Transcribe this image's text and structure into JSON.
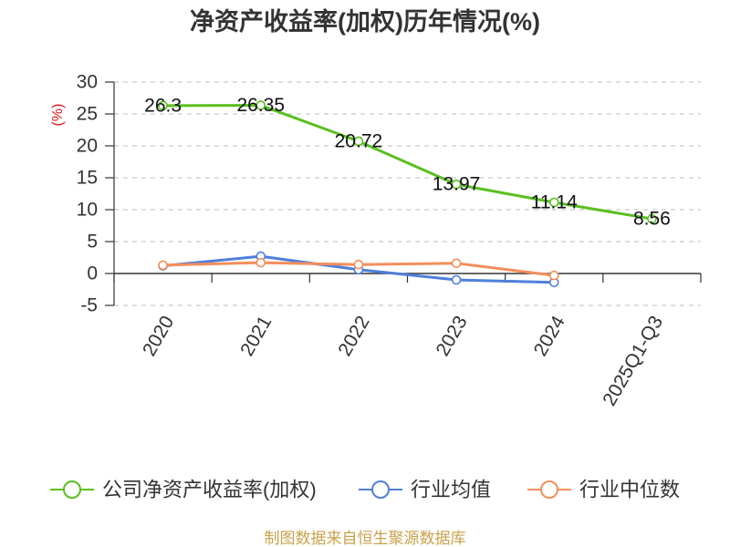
{
  "chart_data": {
    "type": "line",
    "title": "净资产收益率(加权)历年情况(%)",
    "ylabel": "(%)",
    "categories": [
      "2020",
      "2021",
      "2022",
      "2023",
      "2024",
      "2025Q1-Q3"
    ],
    "ylim": [
      -5,
      30
    ],
    "yticks": [
      30,
      25,
      20,
      15,
      10,
      5,
      0,
      -5
    ],
    "grid": true,
    "legend_position": "bottom",
    "series": [
      {
        "name": "公司净资产收益率(加权)",
        "color": "#5bbf20",
        "show_labels": true,
        "values": [
          26.3,
          26.35,
          20.72,
          13.97,
          11.14,
          8.56
        ]
      },
      {
        "name": "行业均值",
        "color": "#4f7fdb",
        "show_labels": false,
        "values": [
          1.2,
          2.7,
          0.6,
          -1.0,
          -1.4,
          null
        ]
      },
      {
        "name": "行业中位数",
        "color": "#f38e5b",
        "show_labels": false,
        "values": [
          1.3,
          1.7,
          1.4,
          1.6,
          -0.3,
          null
        ]
      }
    ]
  },
  "footer": "制图数据来自恒生聚源数据库"
}
